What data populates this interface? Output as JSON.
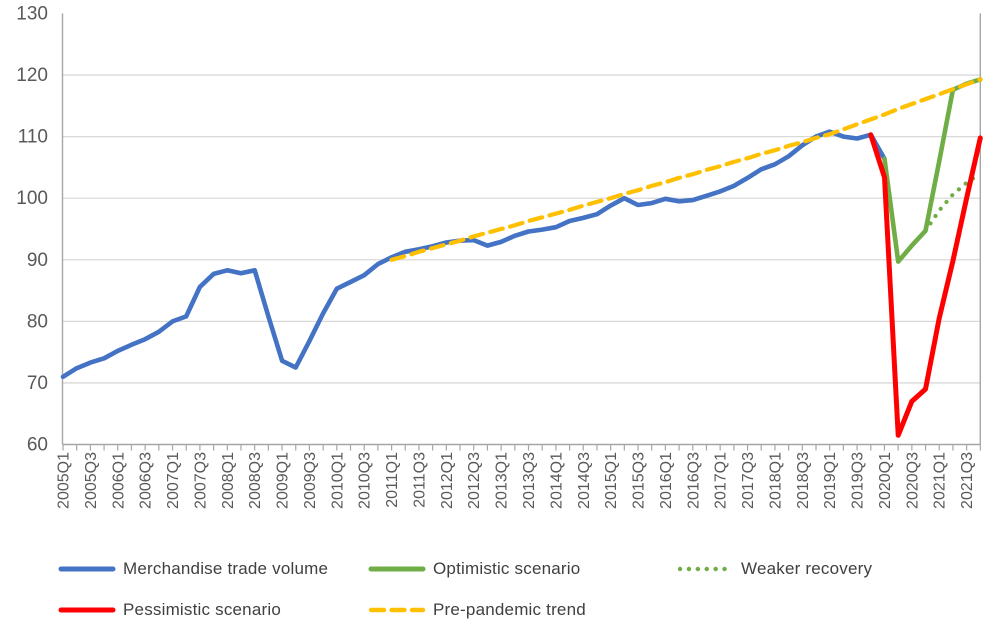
{
  "chart_data": {
    "type": "line",
    "title": "",
    "x_categories": [
      "2005Q1",
      "2005Q2",
      "2005Q3",
      "2005Q4",
      "2006Q1",
      "2006Q2",
      "2006Q3",
      "2006Q4",
      "2007Q1",
      "2007Q2",
      "2007Q3",
      "2007Q4",
      "2008Q1",
      "2008Q2",
      "2008Q3",
      "2008Q4",
      "2009Q1",
      "2009Q2",
      "2009Q3",
      "2009Q4",
      "2010Q1",
      "2010Q2",
      "2010Q3",
      "2010Q4",
      "2011Q1",
      "2011Q2",
      "2011Q3",
      "2011Q4",
      "2012Q1",
      "2012Q2",
      "2012Q3",
      "2012Q4",
      "2013Q1",
      "2013Q2",
      "2013Q3",
      "2013Q4",
      "2014Q1",
      "2014Q2",
      "2014Q3",
      "2014Q4",
      "2015Q1",
      "2015Q2",
      "2015Q3",
      "2015Q4",
      "2016Q1",
      "2016Q2",
      "2016Q3",
      "2016Q4",
      "2017Q1",
      "2017Q2",
      "2017Q3",
      "2017Q4",
      "2018Q1",
      "2018Q2",
      "2018Q3",
      "2018Q4",
      "2019Q1",
      "2019Q2",
      "2019Q3",
      "2019Q4",
      "2020Q1",
      "2020Q2",
      "2020Q3",
      "2020Q4",
      "2021Q1",
      "2021Q2",
      "2021Q3",
      "2021Q4"
    ],
    "x_label_every": 2,
    "y_axis": {
      "min": 60,
      "max": 130,
      "step": 10
    },
    "grid": true,
    "legend_position": "bottom",
    "series": [
      {
        "name": "Merchandise trade volume",
        "color": "#4472C4",
        "style": "solid",
        "width": 4.6,
        "start_index": 0,
        "values": [
          71.0,
          72.4,
          73.3,
          74.0,
          75.2,
          76.2,
          77.1,
          78.3,
          80.0,
          80.8,
          85.6,
          87.7,
          88.3,
          87.8,
          88.3,
          80.8,
          73.6,
          72.5,
          76.8,
          81.3,
          85.3,
          86.4,
          87.5,
          89.3,
          90.4,
          91.3,
          91.7,
          92.2,
          92.8,
          93.1,
          93.2,
          92.3,
          92.9,
          93.9,
          94.6,
          94.9,
          95.3,
          96.3,
          96.8,
          97.4,
          98.8,
          100.0,
          98.9,
          99.2,
          99.9,
          99.5,
          99.7,
          100.4,
          101.1,
          102.0,
          103.3,
          104.7,
          105.5,
          106.8,
          108.6,
          110.0,
          110.8,
          110.0,
          109.7,
          110.3,
          106.4
        ]
      },
      {
        "name": "Optimistic scenario",
        "color": "#70AD47",
        "style": "solid",
        "width": 4.6,
        "start_index": 60,
        "values": [
          106.4,
          89.7,
          92.3,
          94.7,
          106.0,
          117.6,
          118.6,
          119.3
        ]
      },
      {
        "name": "Weaker recovery",
        "color": "#70AD47",
        "style": "dotted",
        "width": 4.2,
        "start_index": 63,
        "values": [
          94.7,
          98.0,
          100.6,
          102.5,
          104.0
        ]
      },
      {
        "name": "Pessimistic scenario",
        "color": "#FF0000",
        "style": "solid",
        "width": 5,
        "start_index": 59,
        "values": [
          110.3,
          103.4,
          61.5,
          67.0,
          69.0,
          80.5,
          89.8,
          100.0,
          109.8
        ]
      },
      {
        "name": "Pre-pandemic trend",
        "color": "#FFC000",
        "style": "dashed",
        "width": 4.2,
        "start_index": 24,
        "values": [
          90.0,
          90.6,
          91.3,
          91.9,
          92.5,
          93.1,
          93.8,
          94.4,
          95.0,
          95.6,
          96.3,
          96.9,
          97.5,
          98.1,
          98.8,
          99.4,
          100.0,
          100.7,
          101.3,
          102.0,
          102.6,
          103.3,
          103.9,
          104.6,
          105.2,
          105.9,
          106.5,
          107.2,
          107.8,
          108.5,
          109.1,
          109.8,
          110.4,
          111.2,
          112.0,
          112.8,
          113.6,
          114.5,
          115.3,
          116.1,
          116.9,
          117.7,
          118.5,
          119.3
        ]
      }
    ]
  },
  "style_tokens": {
    "gridline_color": "#D9D9D9",
    "axis_color": "#A6A6A6",
    "axis_label_color": "#595959",
    "legend_text_color": "#404040",
    "background": "#FFFFFF"
  }
}
